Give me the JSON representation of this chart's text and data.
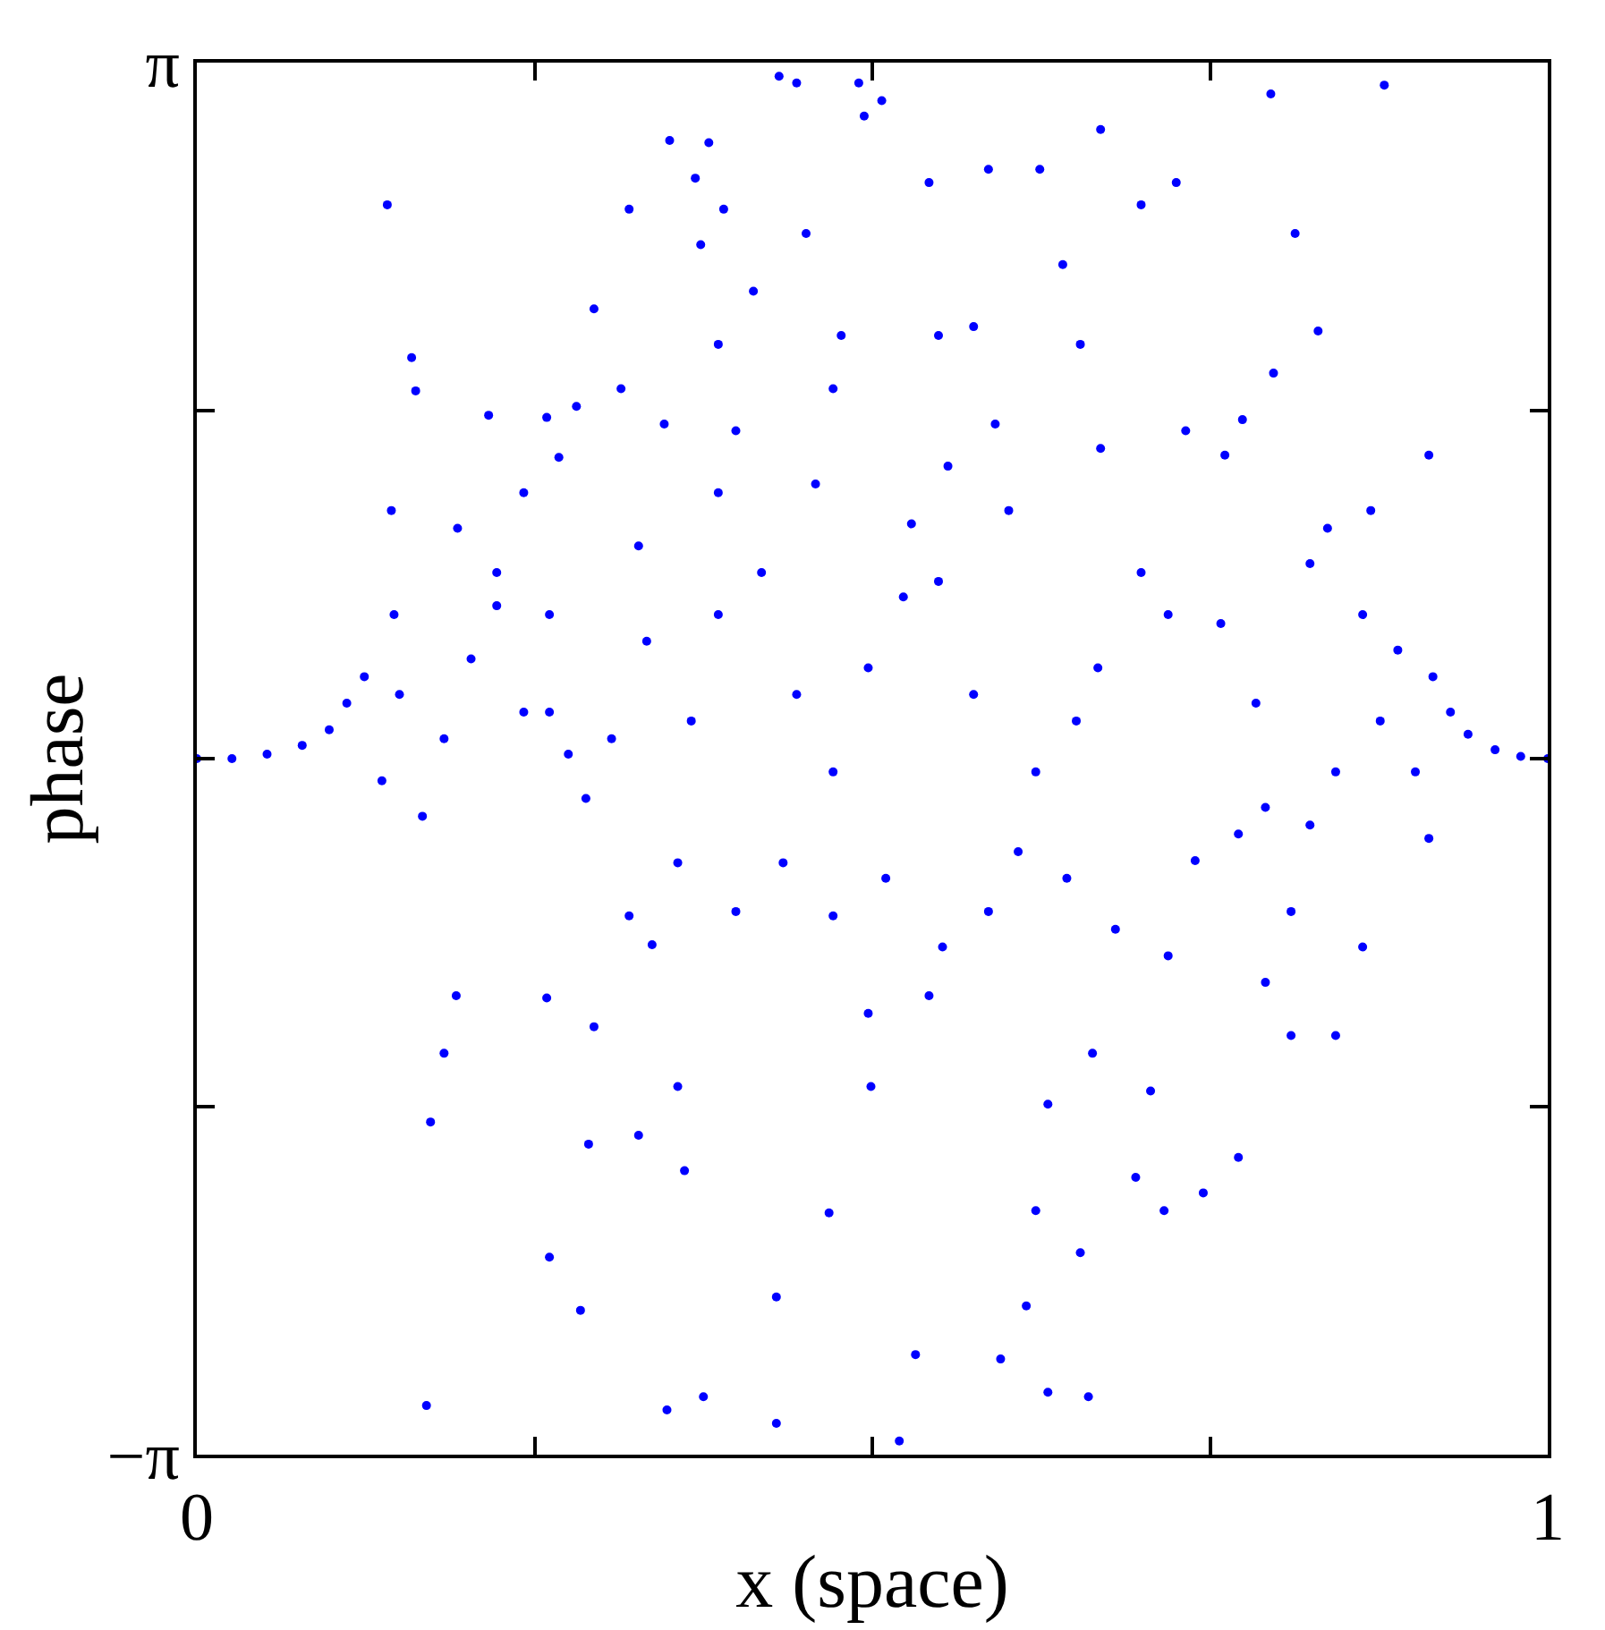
{
  "chart_data": {
    "type": "scatter",
    "xlabel": "x (space)",
    "ylabel": "phase",
    "xlim": [
      0,
      1
    ],
    "ylim": [
      -3.141593,
      3.141593
    ],
    "xticks": [
      0,
      {
        "value": 0.25,
        "label": null
      },
      {
        "value": 0.5,
        "label": null
      },
      {
        "value": 0.75,
        "label": null
      },
      1
    ],
    "yticks": [
      {
        "value": -3.141593,
        "label": "−π"
      },
      {
        "value": -1.570796,
        "label": null
      },
      {
        "value": 0,
        "label": null
      },
      {
        "value": 1.570796,
        "label": null
      },
      {
        "value": 3.141593,
        "label": "π"
      }
    ],
    "marker": "circle",
    "series": [
      {
        "color": "#0000ff",
        "x": [
          0,
          0.026,
          0.052,
          0.078,
          0.098,
          0.111,
          0.124,
          0.915,
          0.928,
          0.941,
          0.961,
          0.98,
          1.0,
          0.141,
          0.159,
          0.162,
          0.144,
          0.146,
          0.15,
          0.137,
          0.167,
          0.193,
          0.216,
          0.222,
          0.242,
          0.259,
          0.261,
          0.268,
          0.281,
          0.288,
          0.294,
          0.314,
          0.32,
          0.327,
          0.346,
          0.35,
          0.369,
          0.379,
          0.373,
          0.39,
          0.386,
          0.399,
          0.412,
          0.431,
          0.444,
          0.451,
          0.471,
          0.477,
          0.49,
          0.494,
          0.507,
          0.542,
          0.549,
          0.556,
          0.575,
          0.586,
          0.591,
          0.624,
          0.641,
          0.654,
          0.669,
          0.699,
          0.725,
          0.732,
          0.761,
          0.774,
          0.795,
          0.813,
          0.797,
          0.83,
          0.837,
          0.879,
          0.912,
          0.863,
          0.889,
          0.876,
          0.902,
          0.912,
          0.863,
          0.843,
          0.81,
          0.791,
          0.771,
          0.745,
          0.716,
          0.695,
          0.706,
          0.663,
          0.63,
          0.621,
          0.654,
          0.614,
          0.595,
          0.63,
          0.66,
          0.532,
          0.52,
          0.468,
          0.429,
          0.429,
          0.375,
          0.348,
          0.361,
          0.356,
          0.327,
          0.29,
          0.284,
          0.261,
          0.17,
          0.173,
          0.183,
          0.192,
          0.259,
          0.294,
          0.32,
          0.337,
          0.356,
          0.399,
          0.434,
          0.471,
          0.499,
          0.497,
          0.51,
          0.542,
          0.552,
          0.586,
          0.608,
          0.644,
          0.68,
          0.719,
          0.739,
          0.771,
          0.791,
          0.81,
          0.824,
          0.843,
          0.784,
          0.758,
          0.719,
          0.699,
          0.667,
          0.651,
          0.621,
          0.575,
          0.549,
          0.523,
          0.497,
          0.471,
          0.444,
          0.418,
          0.386,
          0.366,
          0.333,
          0.307,
          0.275,
          0.242,
          0.203,
          0.183,
          0.222,
          0.261,
          0.824,
          0.869,
          0.458,
          0.529,
          0.601,
          0.669,
          0.386
        ],
        "values": [
          0,
          0,
          0.02,
          0.06,
          0.13,
          0.25,
          0.37,
          0.37,
          0.21,
          0.11,
          0.04,
          0.01,
          0,
          2.5,
          1.81,
          1.66,
          1.12,
          0.65,
          0.29,
          -0.1,
          -0.26,
          1.04,
          1.55,
          0.69,
          1.2,
          1.54,
          0.21,
          1.36,
          1.59,
          -0.18,
          2.03,
          1.67,
          2.48,
          0.96,
          1.51,
          2.79,
          2.62,
          2.78,
          2.32,
          2.48,
          1.87,
          1.48,
          2.11,
          3.08,
          3.05,
          2.37,
          1.67,
          1.91,
          3.05,
          2.9,
          2.97,
          2.6,
          1.91,
          1.32,
          1.95,
          2.66,
          1.51,
          2.66,
          2.23,
          1.87,
          2.84,
          2.5,
          2.6,
          1.48,
          1.37,
          1.53,
          3.0,
          2.37,
          1.74,
          1.93,
          1.04,
          3.04,
          1.37,
          0.65,
          0.49,
          0.17,
          -0.06,
          -0.36,
          -0.85,
          -1.25,
          -1.25,
          -1.01,
          -1.8,
          -1.96,
          -2.04,
          -1.89,
          -1.5,
          -1.33,
          -1.56,
          -2.04,
          -2.23,
          -2.47,
          -2.71,
          -2.86,
          -2.88,
          -2.69,
          -3.08,
          -2.05,
          -2.43,
          -3.0,
          -2.88,
          -2.94,
          -1.86,
          -1.48,
          -1.7,
          -1.74,
          -2.49,
          -2.25,
          -2.92,
          -1.64,
          -1.33,
          -1.07,
          -1.08,
          -1.21,
          -0.71,
          -0.84,
          -0.47,
          -0.69,
          -0.47,
          -0.71,
          -1.48,
          -1.15,
          -0.54,
          -1.07,
          -0.85,
          -0.69,
          -0.42,
          -0.54,
          -0.77,
          -0.89,
          -0.46,
          -0.34,
          -0.22,
          -0.69,
          -0.3,
          -0.06,
          0.25,
          0.61,
          0.65,
          0.84,
          0.41,
          0.17,
          -0.06,
          0.29,
          0.8,
          0.73,
          0.41,
          -0.06,
          0.29,
          0.84,
          0.65,
          0.17,
          0.53,
          0.09,
          0.02,
          0.21,
          0.45,
          0.09,
          0.84,
          0.65,
          0.88,
          1.12,
          1.24,
          1.06,
          1.12,
          1.4,
          1.2
        ]
      }
    ]
  }
}
